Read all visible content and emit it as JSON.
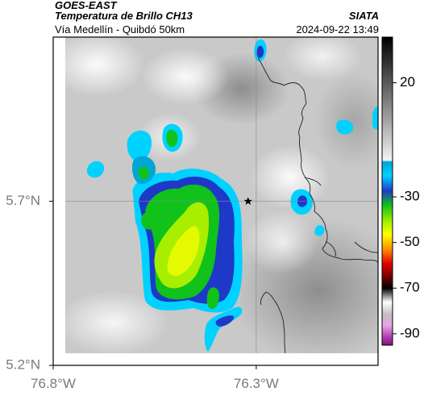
{
  "header": {
    "agency": "GOES-EAST",
    "product": "Temperatura de Brillo CH13",
    "region": "Vía Medellín - Quibdó 50km",
    "organization": "SIATA",
    "datetime": "2024-09-22 13:49"
  },
  "map": {
    "lon_ticks": [
      {
        "value": -76.8,
        "label": "76.8°W"
      },
      {
        "value": -76.3,
        "label": "76.3°W"
      }
    ],
    "lat_ticks": [
      {
        "value": 5.7,
        "label": "5.7°N"
      },
      {
        "value": 5.2,
        "label": "5.2°N"
      }
    ],
    "lon_range": [
      -76.8,
      -76.0
    ],
    "lat_range": [
      5.2,
      6.2
    ],
    "marker": {
      "symbol": "star",
      "lon": -76.32,
      "lat": 5.7
    },
    "gridlines": true
  },
  "colorbar": {
    "range": [
      -95,
      40
    ],
    "ticks": [
      {
        "value": 20,
        "label": "20"
      },
      {
        "value": -30,
        "label": "-30"
      },
      {
        "value": -50,
        "label": "-50"
      },
      {
        "value": -70,
        "label": "-70"
      },
      {
        "value": -90,
        "label": "-90"
      }
    ]
  }
}
